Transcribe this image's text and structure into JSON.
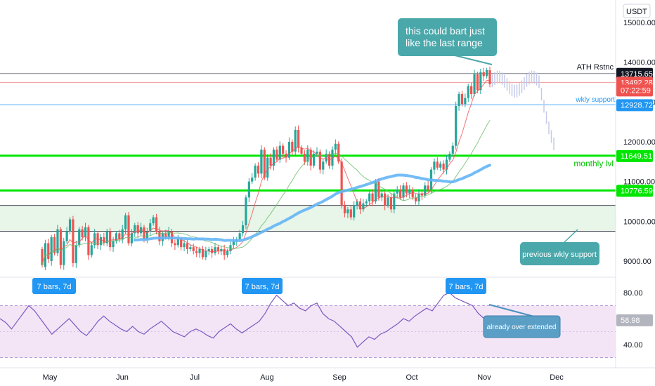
{
  "currency": "USDT",
  "chart_data": {
    "type": "candlestick",
    "price_axis": {
      "ylim": [
        8700,
        15600
      ],
      "ticks": [
        9000,
        10000,
        11000,
        12000,
        13000,
        14000,
        15000
      ],
      "tick_labels": [
        "9000.00",
        "10000.00",
        "11000.00",
        "12000.00",
        "13000.00",
        "14000.00",
        "15000.00"
      ]
    },
    "rsi_axis": {
      "ylim": [
        20,
        100
      ],
      "ticks": [
        40,
        80
      ],
      "tick_labels": [
        "40.00",
        "80.00"
      ],
      "band": [
        30,
        70
      ]
    },
    "x_axis": {
      "labels": [
        "May",
        "Jun",
        "Jul",
        "Aug",
        "Sep",
        "Oct",
        "Nov",
        "Dec"
      ]
    },
    "price_tags": [
      {
        "value": 13715.65,
        "label": "13715.65",
        "color": "#131722",
        "text_color": "#ffffff"
      },
      {
        "value": 13492.28,
        "label": "13492.28",
        "color": "#ef5350",
        "text_color": "#ffffff"
      },
      {
        "value": 13300,
        "label": "07:22:59",
        "color": "#ef5350",
        "text_color": "#ffffff"
      },
      {
        "value": 12928.72,
        "label": "12928.72",
        "color": "#2196f3",
        "text_color": "#ffffff"
      },
      {
        "value": 11649.51,
        "label": "11649.51",
        "color": "#00e600",
        "text_color": "#131722"
      },
      {
        "value": 10776.59,
        "label": "10776.59",
        "color": "#00e600",
        "text_color": "#131722"
      },
      {
        "value": 58.98,
        "label": "58.98",
        "color": "#b2b5be",
        "text_color": "#131722",
        "pane": "rsi"
      }
    ],
    "levels": [
      {
        "name": "ATH Rstnc",
        "value": 13715.65,
        "color": "#787b86",
        "width": 1
      },
      {
        "name": "",
        "value": 13492.28,
        "color": "#ef9a9a",
        "width": 1
      },
      {
        "name": "wkly support",
        "value": 12928.72,
        "color": "#42a5f5",
        "width": 1
      },
      {
        "name": "monthly lvl",
        "value": 11649.51,
        "color": "#00e600",
        "width": 3
      },
      {
        "name": "",
        "value": 10776.59,
        "color": "#00e600",
        "width": 3
      }
    ],
    "support_zone": {
      "from": 9750,
      "to": 10400,
      "color": "#e8f5e9"
    },
    "candles_may_to_dec": [
      [
        9300,
        8900
      ],
      [
        8850,
        9450
      ],
      [
        9450,
        9050
      ],
      [
        9000,
        9600
      ],
      [
        9600,
        9200
      ],
      [
        9200,
        9800
      ],
      [
        9800,
        8900
      ],
      [
        8900,
        9500
      ],
      [
        9500,
        9750
      ],
      [
        9750,
        10050
      ],
      [
        10050,
        8950
      ],
      [
        8950,
        9400
      ],
      [
        9400,
        9800
      ],
      [
        9800,
        9600
      ],
      [
        9600,
        9850
      ],
      [
        9850,
        9150
      ],
      [
        9150,
        9400
      ],
      [
        9400,
        9700
      ],
      [
        9700,
        9400
      ],
      [
        9400,
        9600
      ],
      [
        9600,
        9450
      ],
      [
        9450,
        9750
      ],
      [
        9750,
        9350
      ],
      [
        9350,
        9500
      ],
      [
        9500,
        9700
      ],
      [
        9700,
        9550
      ],
      [
        9550,
        9800
      ],
      [
        9800,
        10150
      ],
      [
        10150,
        9450
      ],
      [
        9450,
        9700
      ],
      [
        9700,
        9900
      ],
      [
        9900,
        9700
      ],
      [
        9700,
        9850
      ],
      [
        9850,
        9550
      ],
      [
        9550,
        9750
      ],
      [
        9750,
        9950
      ],
      [
        9950,
        10100
      ],
      [
        10100,
        9750
      ],
      [
        9750,
        9500
      ],
      [
        9500,
        9700
      ],
      [
        9700,
        9600
      ],
      [
        9600,
        9750
      ],
      [
        9750,
        9450
      ],
      [
        9450,
        9400
      ],
      [
        9400,
        9550
      ],
      [
        9550,
        9350
      ],
      [
        9350,
        9450
      ],
      [
        9450,
        9300
      ],
      [
        9300,
        9350
      ],
      [
        9350,
        9250
      ],
      [
        9250,
        9200
      ],
      [
        9200,
        9300
      ],
      [
        9300,
        9100
      ],
      [
        9100,
        9250
      ],
      [
        9250,
        9300
      ],
      [
        9300,
        9200
      ],
      [
        9200,
        9350
      ],
      [
        9350,
        9250
      ],
      [
        9250,
        9300
      ],
      [
        9300,
        9150
      ],
      [
        9150,
        9250
      ],
      [
        9250,
        9400
      ],
      [
        9400,
        9500
      ],
      [
        9500,
        9550
      ],
      [
        9550,
        9700
      ],
      [
        9700,
        9900
      ],
      [
        9900,
        10600
      ],
      [
        10600,
        11000
      ],
      [
        11000,
        11100
      ],
      [
        11100,
        11400
      ],
      [
        11400,
        11200
      ],
      [
        11200,
        11800
      ],
      [
        11800,
        11100
      ],
      [
        11100,
        11600
      ],
      [
        11600,
        11400
      ],
      [
        11400,
        11800
      ],
      [
        11800,
        11550
      ],
      [
        11550,
        11900
      ],
      [
        11900,
        11700
      ],
      [
        11700,
        11600
      ],
      [
        11600,
        12000
      ],
      [
        12000,
        11750
      ],
      [
        11750,
        12300
      ],
      [
        12300,
        11850
      ],
      [
        11850,
        11700
      ],
      [
        11700,
        11500
      ],
      [
        11500,
        11800
      ],
      [
        11800,
        11400
      ],
      [
        11400,
        11700
      ],
      [
        11700,
        11750
      ],
      [
        11750,
        11300
      ],
      [
        11300,
        11500
      ],
      [
        11500,
        11700
      ],
      [
        11700,
        11400
      ],
      [
        11400,
        11800
      ],
      [
        11800,
        11950
      ],
      [
        11950,
        11500
      ],
      [
        11500,
        10400
      ],
      [
        10400,
        10200
      ],
      [
        10200,
        10300
      ],
      [
        10300,
        10100
      ],
      [
        10100,
        10400
      ],
      [
        10400,
        10500
      ],
      [
        10500,
        10300
      ],
      [
        10300,
        10450
      ],
      [
        10450,
        10500
      ],
      [
        10500,
        10700
      ],
      [
        10700,
        10500
      ],
      [
        10500,
        11000
      ],
      [
        11000,
        10600
      ],
      [
        10600,
        10700
      ],
      [
        10700,
        10400
      ],
      [
        10400,
        10600
      ],
      [
        10600,
        10300
      ],
      [
        10300,
        10700
      ],
      [
        10700,
        10800
      ],
      [
        10800,
        10600
      ],
      [
        10600,
        10900
      ],
      [
        10900,
        10700
      ],
      [
        10700,
        10800
      ],
      [
        10800,
        10600
      ],
      [
        10600,
        10500
      ],
      [
        10500,
        10700
      ],
      [
        10700,
        10650
      ],
      [
        10650,
        10900
      ],
      [
        10900,
        10800
      ],
      [
        10800,
        11300
      ],
      [
        11300,
        11500
      ],
      [
        11500,
        11350
      ],
      [
        11350,
        11450
      ],
      [
        11450,
        11300
      ],
      [
        11300,
        11550
      ],
      [
        11550,
        11700
      ],
      [
        11700,
        11900
      ],
      [
        11900,
        12900
      ],
      [
        12900,
        13200
      ],
      [
        13200,
        12950
      ],
      [
        12950,
        13100
      ],
      [
        13100,
        13400
      ],
      [
        13400,
        13200
      ],
      [
        13200,
        13700
      ],
      [
        13700,
        13300
      ],
      [
        13300,
        13750
      ],
      [
        13750,
        13650
      ],
      [
        13650,
        13800
      ],
      [
        13800,
        13450
      ]
    ],
    "moving_averages": [
      {
        "name": "fast",
        "color": "#ef5350",
        "width": 1
      },
      {
        "name": "mid",
        "color": "#66bb6a",
        "width": 1
      },
      {
        "name": "slow",
        "color": "#64b5f6",
        "width": 4
      }
    ],
    "rsi_series": [
      60,
      57,
      52,
      58,
      64,
      70,
      66,
      60,
      54,
      48,
      52,
      56,
      60,
      55,
      50,
      47,
      52,
      58,
      62,
      58,
      55,
      52,
      50,
      54,
      50,
      48,
      52,
      55,
      58,
      54,
      50,
      48,
      46,
      50,
      52,
      50,
      47,
      45,
      50,
      53,
      56,
      52,
      49,
      52,
      55,
      58,
      64,
      72,
      78,
      74,
      70,
      72,
      68,
      66,
      70,
      72,
      64,
      60,
      58,
      54,
      50,
      46,
      38,
      42,
      46,
      44,
      48,
      50,
      53,
      56,
      60,
      58,
      62,
      65,
      68,
      66,
      72,
      78,
      80,
      76,
      74,
      72,
      70,
      64,
      60,
      62
    ]
  },
  "annotations": {
    "callout_top": "this could bart just\nlike the last range",
    "callout_wkly": "previous wkly support",
    "callout_rsi": "already over extended",
    "bars_1": "7 bars, 7d",
    "bars_2": "7 bars, 7d",
    "bars_3": "7 bars, 7d",
    "ath_label": "ATH Rstnc",
    "wkly_support_label": "wkly support",
    "monthly_label": "monthly lvl"
  },
  "colors": {
    "up": "#26a69a",
    "down": "#ef5350",
    "rsi": "#7e57c2",
    "rsi_band": "#f3e5f5",
    "callout": "#4aa8ab"
  }
}
